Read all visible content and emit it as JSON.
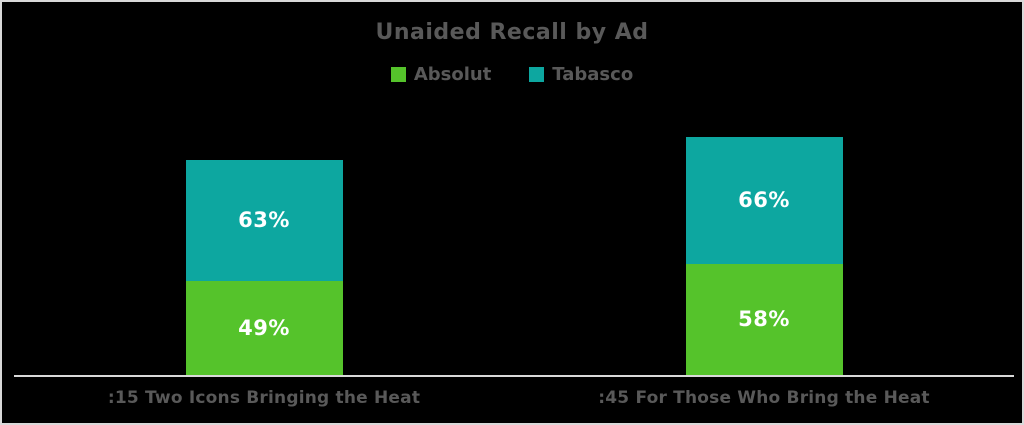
{
  "window": {
    "background_color": "#000000",
    "border_color": "#D9D9D9"
  },
  "chart_data": {
    "type": "bar",
    "stacked": true,
    "title": "Unaided Recall by Ad",
    "categories": [
      ":15 Two Icons Bringing the Heat",
      ":45 For Those Who Bring the Heat"
    ],
    "series": [
      {
        "name": "Absolut",
        "color": "#55C32B",
        "values": [
          49,
          58
        ],
        "display_labels": [
          "49%",
          "58%"
        ]
      },
      {
        "name": "Tabasco",
        "color": "#0DA7A0",
        "values": [
          63,
          66
        ],
        "display_labels": [
          "63%",
          "66%"
        ]
      }
    ],
    "value_format": "percent",
    "legend_position": "top",
    "grid": false,
    "y_axis_visible": false,
    "implied_y_max": 124,
    "colors": {
      "title_text": "#595959",
      "legend_text": "#595959",
      "category_text": "#595959",
      "segment_label_text": "#FFFFFF",
      "axis_line": "#D9D9D9"
    }
  }
}
